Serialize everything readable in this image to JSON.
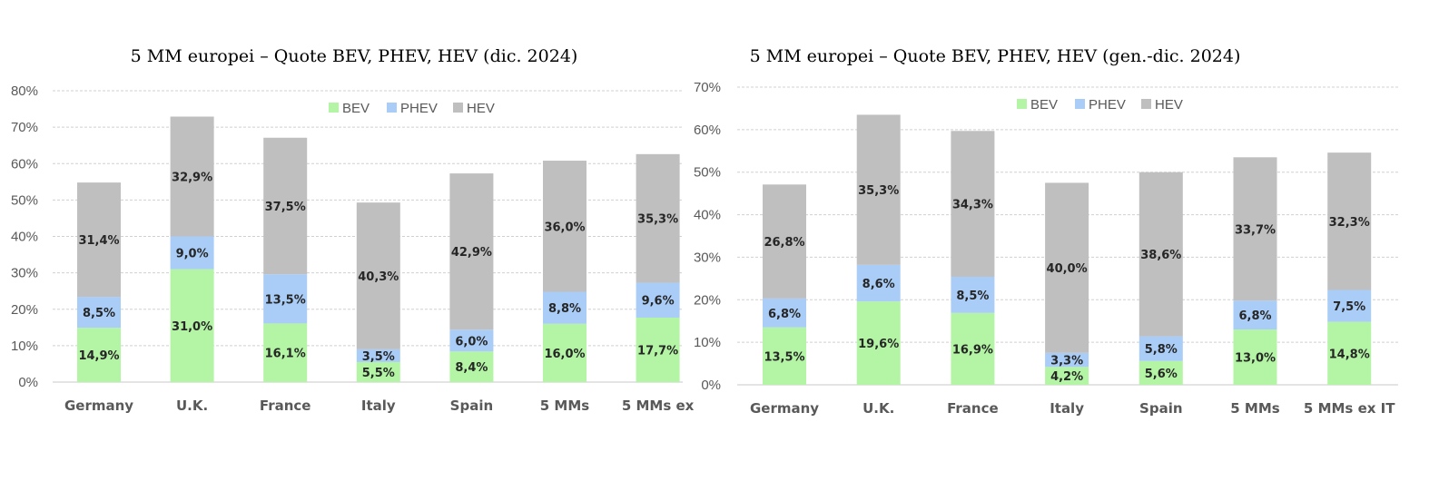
{
  "chart_data": [
    {
      "type": "bar",
      "stacked": true,
      "title": "5 MM europei – Quote BEV, PHEV, HEV (dic. 2024)",
      "categories": [
        "Germany",
        "U.K.",
        "France",
        "Italy",
        "Spain",
        "5 MMs",
        "5 MMs ex"
      ],
      "series": [
        {
          "name": "BEV",
          "color": "#b3f5a4",
          "values": [
            14.9,
            31.0,
            16.1,
            5.5,
            8.4,
            16.0,
            17.7
          ],
          "labels": [
            "14,9%",
            "31,0%",
            "16,1%",
            "5,5%",
            "8,4%",
            "16,0%",
            "17,7%"
          ]
        },
        {
          "name": "PHEV",
          "color": "#a9cdf7",
          "values": [
            8.5,
            9.0,
            13.5,
            3.5,
            6.0,
            8.8,
            9.6
          ],
          "labels": [
            "8,5%",
            "9,0%",
            "13,5%",
            "3,5%",
            "6,0%",
            "8,8%",
            "9,6%"
          ]
        },
        {
          "name": "HEV",
          "color": "#bfbfbf",
          "values": [
            31.4,
            32.9,
            37.5,
            40.3,
            42.9,
            36.0,
            35.3
          ],
          "labels": [
            "31,4%",
            "32,9%",
            "37,5%",
            "40,3%",
            "42,9%",
            "36,0%",
            "35,3%"
          ]
        }
      ],
      "ylim": [
        0,
        80
      ],
      "yticks": [
        "0%",
        "10%",
        "20%",
        "30%",
        "40%",
        "50%",
        "60%",
        "70%",
        "80%"
      ],
      "grid": true,
      "legend": "top-right"
    },
    {
      "type": "bar",
      "stacked": true,
      "title": "5 MM europei – Quote BEV, PHEV, HEV (gen.-dic. 2024)",
      "categories": [
        "Germany",
        "U.K.",
        "France",
        "Italy",
        "Spain",
        "5 MMs",
        "5 MMs ex IT"
      ],
      "series": [
        {
          "name": "BEV",
          "color": "#b3f5a4",
          "values": [
            13.5,
            19.6,
            16.9,
            4.2,
            5.6,
            13.0,
            14.8
          ],
          "labels": [
            "13,5%",
            "19,6%",
            "16,9%",
            "4,2%",
            "5,6%",
            "13,0%",
            "14,8%"
          ]
        },
        {
          "name": "PHEV",
          "color": "#a9cdf7",
          "values": [
            6.8,
            8.6,
            8.5,
            3.3,
            5.8,
            6.8,
            7.5
          ],
          "labels": [
            "6,8%",
            "8,6%",
            "8,5%",
            "3,3%",
            "5,8%",
            "6,8%",
            "7,5%"
          ]
        },
        {
          "name": "HEV",
          "color": "#bfbfbf",
          "values": [
            26.8,
            35.3,
            34.3,
            40.0,
            38.6,
            33.7,
            32.3
          ],
          "labels": [
            "26,8%",
            "35,3%",
            "34,3%",
            "40,0%",
            "38,6%",
            "33,7%",
            "32,3%"
          ]
        }
      ],
      "ylim": [
        0,
        70
      ],
      "yticks": [
        "0%",
        "10%",
        "20%",
        "30%",
        "40%",
        "50%",
        "60%",
        "70%"
      ],
      "grid": true,
      "legend": "top-right"
    }
  ]
}
